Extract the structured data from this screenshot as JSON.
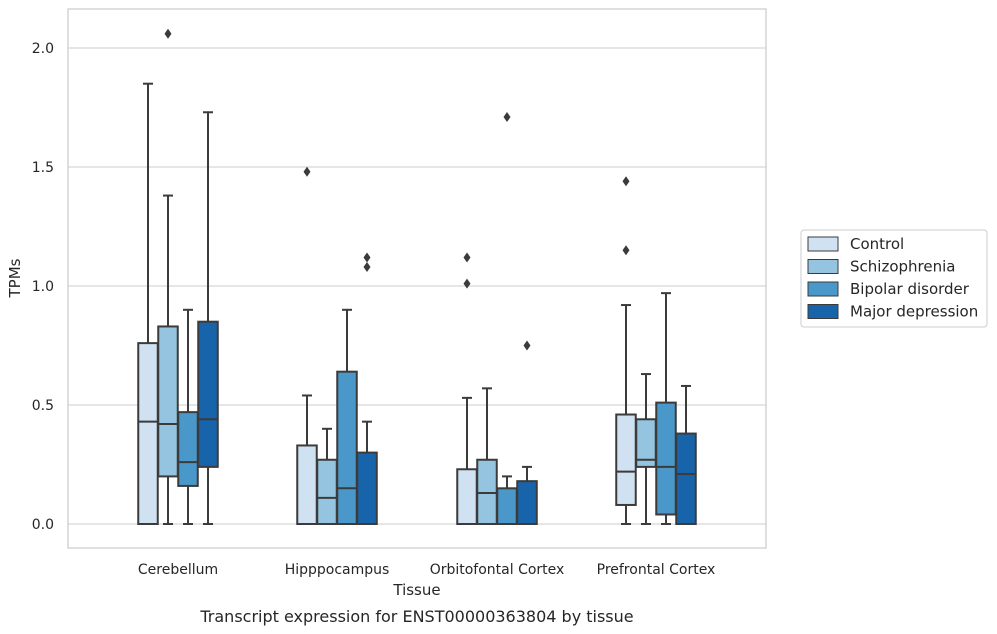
{
  "caption": "Transcript expression for ENST00000363804 by tissue",
  "chart_data": {
    "type": "boxplot",
    "xlabel": "Tissue",
    "ylabel": "TPMs",
    "ylim": [
      -0.1,
      2.17
    ],
    "yticks": [
      "0.0",
      "0.5",
      "1.0",
      "1.5",
      "2.0"
    ],
    "grid": "horizontal",
    "legend_position": "right",
    "categories": [
      "Cerebellum",
      "Hipppocampus",
      "Orbitofontal Cortex",
      "Prefrontal Cortex"
    ],
    "series": [
      {
        "name": "Control",
        "color": "#d0e1f2",
        "boxes": [
          {
            "q1": 0.0,
            "median": 0.43,
            "q3": 0.76,
            "whisker_low": 0.0,
            "whisker_high": 1.85,
            "outliers": []
          },
          {
            "q1": 0.0,
            "median": 0.0,
            "q3": 0.33,
            "whisker_low": 0.0,
            "whisker_high": 0.54,
            "outliers": [
              1.48
            ]
          },
          {
            "q1": 0.0,
            "median": 0.0,
            "q3": 0.23,
            "whisker_low": 0.0,
            "whisker_high": 0.53,
            "outliers": [
              1.01,
              1.12
            ]
          },
          {
            "q1": 0.08,
            "median": 0.22,
            "q3": 0.46,
            "whisker_low": 0.0,
            "whisker_high": 0.92,
            "outliers": [
              1.15,
              1.44
            ]
          }
        ]
      },
      {
        "name": "Schizophrenia",
        "color": "#94c4df",
        "boxes": [
          {
            "q1": 0.2,
            "median": 0.42,
            "q3": 0.83,
            "whisker_low": 0.0,
            "whisker_high": 1.38,
            "outliers": [
              2.06
            ]
          },
          {
            "q1": 0.0,
            "median": 0.11,
            "q3": 0.27,
            "whisker_low": 0.0,
            "whisker_high": 0.4,
            "outliers": []
          },
          {
            "q1": 0.0,
            "median": 0.13,
            "q3": 0.27,
            "whisker_low": 0.0,
            "whisker_high": 0.57,
            "outliers": []
          },
          {
            "q1": 0.24,
            "median": 0.27,
            "q3": 0.44,
            "whisker_low": 0.0,
            "whisker_high": 0.63,
            "outliers": []
          }
        ]
      },
      {
        "name": "Bipolar disorder",
        "color": "#4a98c9",
        "boxes": [
          {
            "q1": 0.16,
            "median": 0.26,
            "q3": 0.47,
            "whisker_low": 0.0,
            "whisker_high": 0.9,
            "outliers": []
          },
          {
            "q1": 0.0,
            "median": 0.15,
            "q3": 0.64,
            "whisker_low": 0.0,
            "whisker_high": 0.9,
            "outliers": []
          },
          {
            "q1": 0.0,
            "median": 0.0,
            "q3": 0.15,
            "whisker_low": 0.0,
            "whisker_high": 0.2,
            "outliers": [
              1.71
            ]
          },
          {
            "q1": 0.04,
            "median": 0.24,
            "q3": 0.51,
            "whisker_low": 0.0,
            "whisker_high": 0.97,
            "outliers": []
          }
        ]
      },
      {
        "name": "Major depression",
        "color": "#1764ab",
        "boxes": [
          {
            "q1": 0.24,
            "median": 0.44,
            "q3": 0.85,
            "whisker_low": 0.0,
            "whisker_high": 1.73,
            "outliers": []
          },
          {
            "q1": 0.0,
            "median": 0.0,
            "q3": 0.3,
            "whisker_low": 0.0,
            "whisker_high": 0.43,
            "outliers": [
              1.08,
              1.12
            ]
          },
          {
            "q1": 0.0,
            "median": 0.0,
            "q3": 0.18,
            "whisker_low": 0.0,
            "whisker_high": 0.24,
            "outliers": [
              0.75
            ]
          },
          {
            "q1": 0.0,
            "median": 0.21,
            "q3": 0.38,
            "whisker_low": 0.0,
            "whisker_high": 0.58,
            "outliers": []
          }
        ]
      }
    ]
  }
}
